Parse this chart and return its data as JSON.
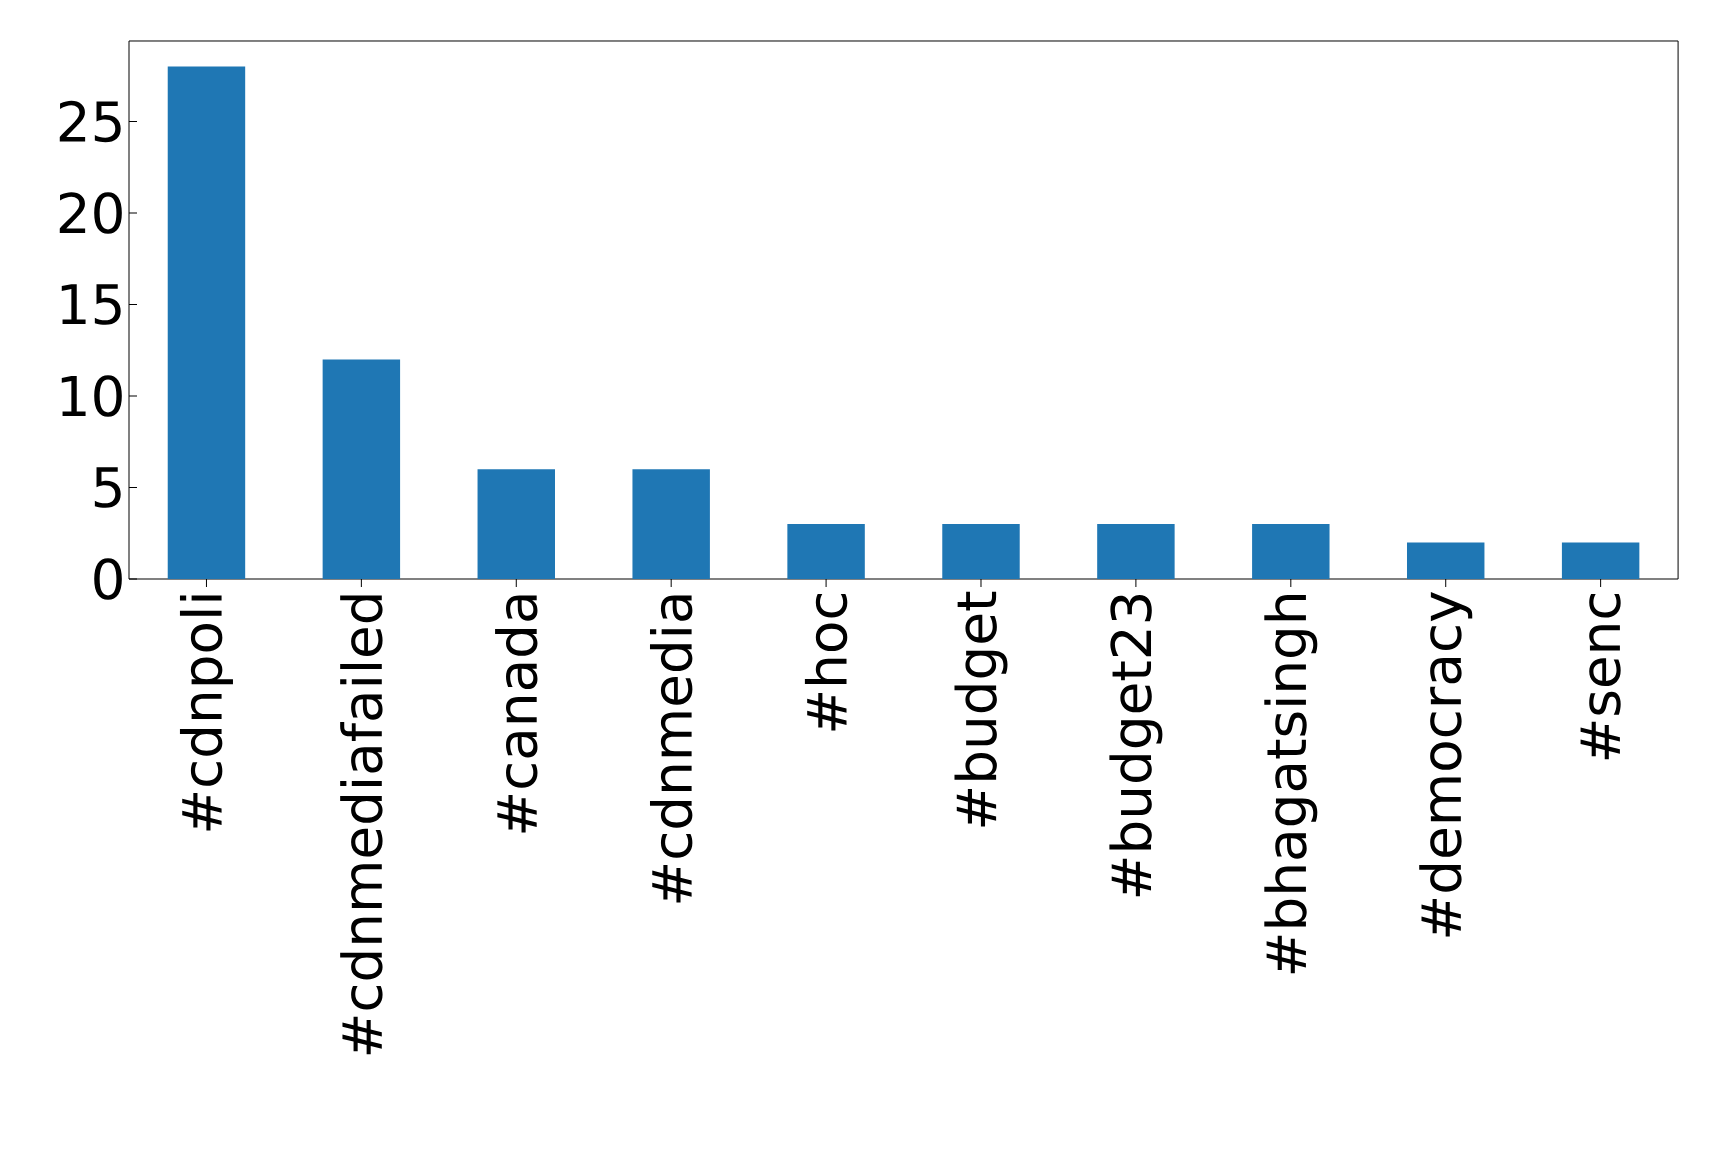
{
  "chart_data": {
    "type": "bar",
    "categories": [
      "#cdnpoli",
      "#cdnmediafailed",
      "#canada",
      "#cdnmedia",
      "#hoc",
      "#budget",
      "#budget23",
      "#bhagatsingh",
      "#democracy",
      "#senc"
    ],
    "values": [
      28,
      12,
      6,
      6,
      3,
      3,
      3,
      3,
      2,
      2
    ],
    "color": "#1f77b4",
    "ylim": [
      0,
      29.4
    ],
    "yticks": [
      0,
      5,
      10,
      15,
      20,
      25
    ],
    "grid": false
  }
}
